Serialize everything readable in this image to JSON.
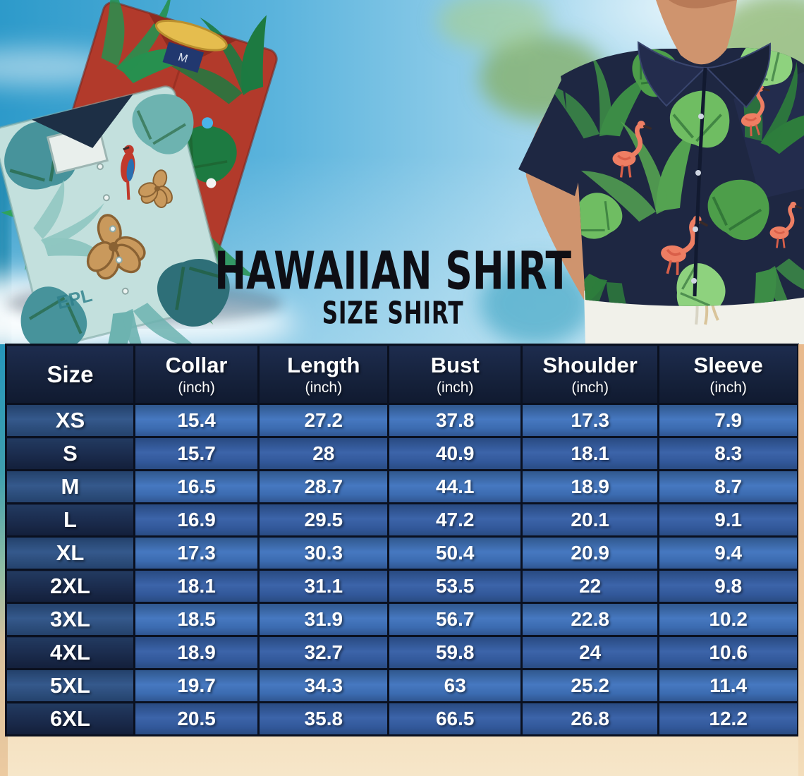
{
  "title": {
    "main": "HAWAIIAN SHIRT",
    "subtitle": "SIZE SHIRT"
  },
  "hero": {
    "left_photo": {
      "description": "two folded hawaiian shirts",
      "red_shirt_size_tag": "M",
      "teal_shirt_print_text": "EPL"
    },
    "right_photo": {
      "description": "model wearing navy flamingo hawaiian shirt"
    }
  },
  "size_table": {
    "columns": [
      {
        "label": "Size",
        "sub": ""
      },
      {
        "label": "Collar",
        "sub": "(inch)"
      },
      {
        "label": "Length",
        "sub": "(inch)"
      },
      {
        "label": "Bust",
        "sub": "(inch)"
      },
      {
        "label": "Shoulder",
        "sub": "(inch)"
      },
      {
        "label": "Sleeve",
        "sub": "(inch)"
      }
    ],
    "rows": [
      {
        "size": "XS",
        "values": [
          "15.4",
          "27.2",
          "37.8",
          "17.3",
          "7.9"
        ]
      },
      {
        "size": "S",
        "values": [
          "15.7",
          "28",
          "40.9",
          "18.1",
          "8.3"
        ]
      },
      {
        "size": "M",
        "values": [
          "16.5",
          "28.7",
          "44.1",
          "18.9",
          "8.7"
        ]
      },
      {
        "size": "L",
        "values": [
          "16.9",
          "29.5",
          "47.2",
          "20.1",
          "9.1"
        ]
      },
      {
        "size": "XL",
        "values": [
          "17.3",
          "30.3",
          "50.4",
          "20.9",
          "9.4"
        ]
      },
      {
        "size": "2XL",
        "values": [
          "18.1",
          "31.1",
          "53.5",
          "22",
          "9.8"
        ]
      },
      {
        "size": "3XL",
        "values": [
          "18.5",
          "31.9",
          "56.7",
          "22.8",
          "10.2"
        ]
      },
      {
        "size": "4XL",
        "values": [
          "18.9",
          "32.7",
          "59.8",
          "24",
          "10.6"
        ]
      },
      {
        "size": "5XL",
        "values": [
          "19.7",
          "34.3",
          "63",
          "25.2",
          "11.4"
        ]
      },
      {
        "size": "6XL",
        "values": [
          "20.5",
          "35.8",
          "66.5",
          "26.8",
          "12.2"
        ]
      }
    ]
  },
  "colors": {
    "c-header": "#16223c",
    "c-size-even": "#2c4e7e",
    "c-size-odd": "#1b2c4e",
    "c-val-even": "#3b6bb0",
    "c-val-odd": "#32589a",
    "c-grid": "#0a101f",
    "c-text": "#ffffff",
    "c-title": "#0e0e14",
    "c-sand": "#eccaa0",
    "sky-left": "#2d9aca",
    "sky-right": "#b9e2f2",
    "shirt-red": "#b23a2b",
    "shirt-teal": "#c3e0dd",
    "shirt-navy": "#1e2742",
    "leaf-green": "#4d9e4a",
    "flamingo-pink": "#ee7e63"
  }
}
